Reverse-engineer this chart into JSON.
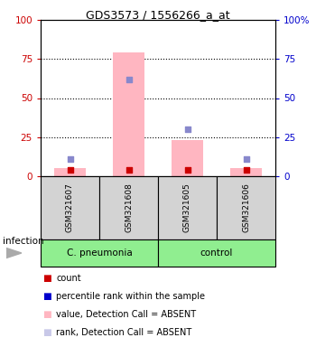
{
  "title": "GDS3573 / 1556266_a_at",
  "samples": [
    "GSM321607",
    "GSM321608",
    "GSM321605",
    "GSM321606"
  ],
  "ylim": [
    0,
    100
  ],
  "yticks": [
    0,
    25,
    50,
    75,
    100
  ],
  "left_yaxis_color": "#cc0000",
  "right_yaxis_color": "#0000cc",
  "right_ytick_labels": [
    "0",
    "25",
    "50",
    "75",
    "100%"
  ],
  "bar_values": [
    5,
    79,
    23,
    5
  ],
  "bar_color": "#ffb6c1",
  "blue_square_values": [
    11,
    62,
    30,
    11
  ],
  "blue_square_color": "#8888cc",
  "red_square_values": [
    4,
    4,
    4,
    4
  ],
  "red_square_color": "#cc0000",
  "bar_bg_color": "#d3d3d3",
  "group_green": "#90ee90",
  "group_names": [
    "C. pneumonia",
    "control"
  ],
  "group_ranges": [
    [
      0,
      1
    ],
    [
      2,
      3
    ]
  ],
  "infection_label": "infection",
  "legend_colors": [
    "#cc0000",
    "#0000cc",
    "#ffb6c1",
    "#c8c8e8"
  ],
  "legend_labels": [
    "count",
    "percentile rank within the sample",
    "value, Detection Call = ABSENT",
    "rank, Detection Call = ABSENT"
  ]
}
